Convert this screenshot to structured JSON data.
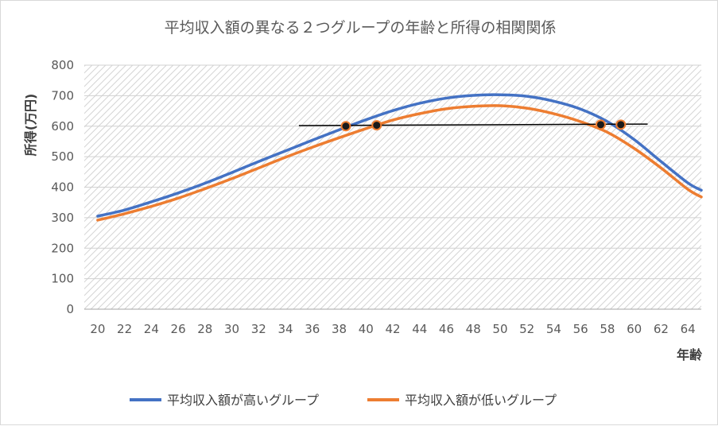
{
  "chart_data": {
    "type": "line",
    "title": "平均収入額の異なる２つグループの年齢と所得の相関関係",
    "xlabel": "年齢",
    "ylabel": "所得(万円)",
    "xlim": [
      19,
      65
    ],
    "ylim": [
      0,
      800
    ],
    "xticks": [
      "20",
      "22",
      "24",
      "26",
      "28",
      "30",
      "32",
      "34",
      "36",
      "38",
      "40",
      "42",
      "44",
      "46",
      "48",
      "50",
      "52",
      "54",
      "56",
      "58",
      "60",
      "62",
      "64"
    ],
    "yticks": [
      "0",
      "100",
      "200",
      "300",
      "400",
      "500",
      "600",
      "700",
      "800"
    ],
    "grid": true,
    "legend_position": "bottom",
    "series": [
      {
        "name": "平均収入額が高いグループ",
        "color": "#4472C4",
        "x": [
          20,
          22,
          24,
          26,
          28,
          30,
          32,
          34,
          36,
          38,
          40,
          42,
          44,
          46,
          48,
          50,
          52,
          54,
          56,
          58,
          60,
          62,
          64,
          65
        ],
        "values": [
          305,
          325,
          352,
          381,
          413,
          448,
          484,
          519,
          554,
          588,
          621,
          651,
          675,
          692,
          701,
          703,
          698,
          682,
          656,
          615,
          556,
          484,
          414,
          390
        ]
      },
      {
        "name": "平均収入額が低いグループ",
        "color": "#ED7D31",
        "x": [
          20,
          22,
          24,
          26,
          28,
          30,
          32,
          34,
          36,
          38,
          40,
          42,
          44,
          46,
          48,
          50,
          52,
          54,
          56,
          58,
          60,
          62,
          64,
          65
        ],
        "values": [
          292,
          313,
          337,
          364,
          395,
          428,
          463,
          498,
          531,
          562,
          592,
          620,
          641,
          657,
          665,
          667,
          659,
          641,
          615,
          580,
          527,
          463,
          393,
          368
        ]
      }
    ],
    "reference_line": {
      "x": [
        35,
        61
      ],
      "values": [
        602,
        607
      ],
      "color": "#000000"
    },
    "markers": {
      "x": [
        38.5,
        40.8,
        57.5,
        59
      ],
      "values": [
        600,
        603,
        605,
        605
      ]
    }
  }
}
